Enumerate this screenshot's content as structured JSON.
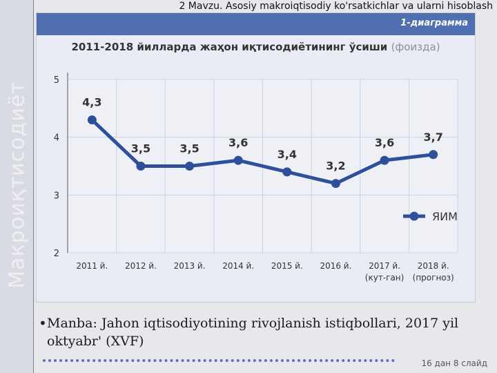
{
  "slide": {
    "header": "2 Mavzu. Asosiy makroiqtisodiy  ko'rsatkichlar va ularni hisoblash",
    "side_label": "Макроиқтисодиёт",
    "bullet": "•",
    "source": "Manba: Jahon iqtisodiyotining rivojlanish istiqbollari, 2017 yil oktyabr' (XVF)",
    "page_note": "16 дан 8 слайд"
  },
  "figure": {
    "label": "1-диаграмма",
    "title_main": "2011-2018 йилларда жаҳон иқтисодиётининг ўсиши",
    "title_unit": "(фоизда)"
  },
  "colors": {
    "band": "#4f6fb0",
    "line": "#2e4f99",
    "grid": "#cdd3e0",
    "page": "#e6e8ec"
  },
  "chart_data": {
    "type": "line",
    "categories": [
      [
        "2011 й."
      ],
      [
        "2012 й."
      ],
      [
        "2013 й."
      ],
      [
        "2014 й."
      ],
      [
        "2015 й."
      ],
      [
        "2016 й."
      ],
      [
        "2017 й.",
        "(кут-ган)"
      ],
      [
        "2018 й.",
        "(прогноз)"
      ]
    ],
    "series": [
      {
        "name": "ЯИМ",
        "values": [
          4.3,
          3.5,
          3.5,
          3.6,
          3.4,
          3.2,
          3.6,
          3.7
        ],
        "labels": [
          "4,3",
          "3,5",
          "3,5",
          "3,6",
          "3,4",
          "3,2",
          "3,6",
          "3,7"
        ]
      }
    ],
    "ylim": [
      2,
      5
    ],
    "yticks": [
      2,
      3,
      4,
      5
    ],
    "grid": true,
    "legend": "right"
  }
}
